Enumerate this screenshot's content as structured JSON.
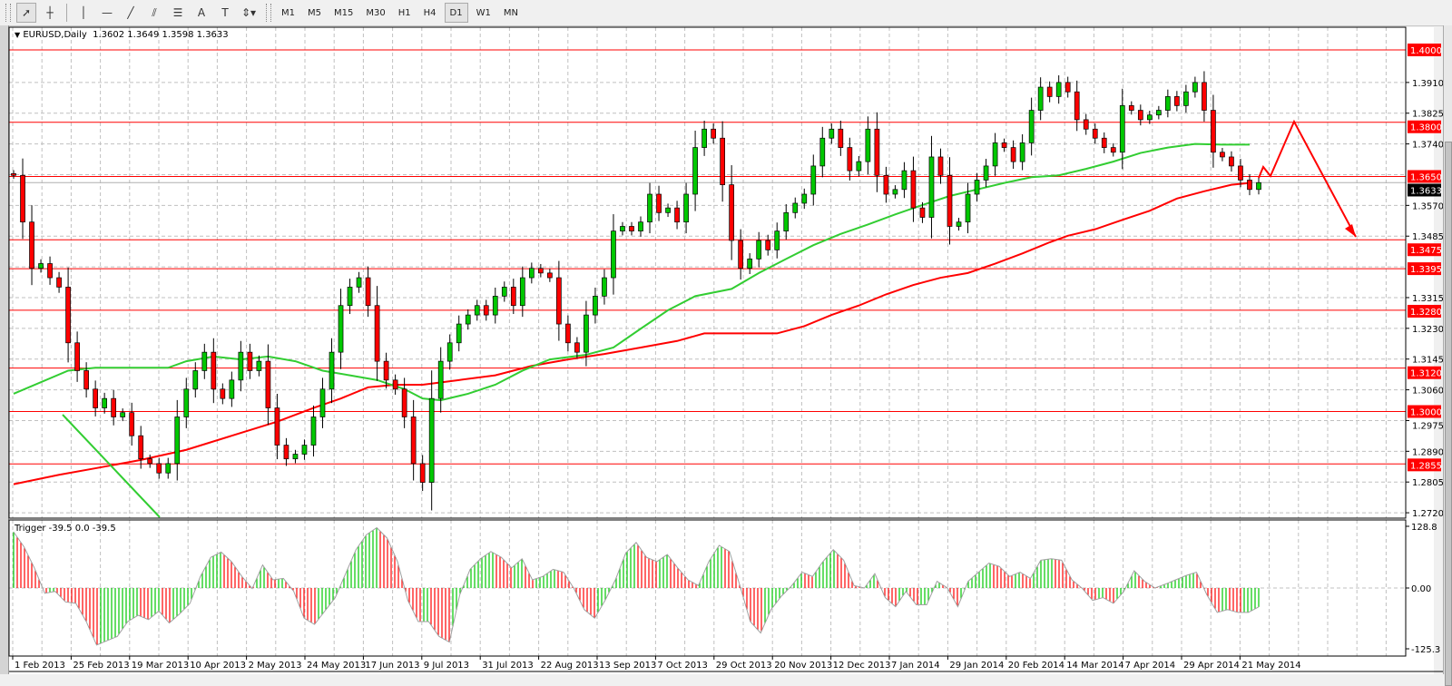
{
  "toolbar": {
    "tools": [
      {
        "name": "cursor-icon",
        "glyph": "➚"
      },
      {
        "name": "crosshair-icon",
        "glyph": "┼"
      },
      {
        "name": "vertical-line-icon",
        "glyph": "│"
      },
      {
        "name": "horizontal-line-icon",
        "glyph": "—"
      },
      {
        "name": "trendline-icon",
        "glyph": "╱"
      },
      {
        "name": "equidistant-channel-icon",
        "glyph": "⫽"
      },
      {
        "name": "fibonacci-icon",
        "glyph": "☰"
      },
      {
        "name": "text-icon",
        "glyph": "A"
      },
      {
        "name": "text-label-icon",
        "glyph": "T"
      },
      {
        "name": "arrows-dropdown-icon",
        "glyph": "⇕▾"
      }
    ],
    "timeframes": [
      "M1",
      "M5",
      "M15",
      "M30",
      "H1",
      "H4",
      "D1",
      "W1",
      "MN"
    ],
    "active_timeframe": "D1"
  },
  "chart": {
    "symbol_label": "EURUSD,Daily",
    "ohlc_label": "1.3602 1.3649 1.3598 1.3633"
  },
  "colors": {
    "bull": "#00c800",
    "bear": "#ff0000",
    "level": "#ff0000",
    "ma_fast": "#32cd32",
    "ma_slow": "#ff0000",
    "grid": "#c0c0c0"
  },
  "chart_data": {
    "type": "candlestick",
    "symbol": "EURUSD",
    "ylim": [
      1.272,
      1.4
    ],
    "current_price": "1.3633",
    "closes": [
      1.3653,
      1.3524,
      1.3396,
      1.3409,
      1.337,
      1.3344,
      1.319,
      1.3113,
      1.3062,
      1.301,
      1.3036,
      1.2985,
      1.2997,
      1.2933,
      1.2869,
      1.2856,
      1.283,
      1.2856,
      1.2985,
      1.3062,
      1.3113,
      1.3164,
      1.3062,
      1.3036,
      1.3087,
      1.3164,
      1.3113,
      1.3139,
      1.301,
      1.2907,
      1.2869,
      1.2882,
      1.2907,
      1.2985,
      1.3062,
      1.3164,
      1.3293,
      1.3344,
      1.337,
      1.3293,
      1.3139,
      1.3087,
      1.3062,
      1.2985,
      1.2856,
      1.2804,
      1.3036,
      1.3139,
      1.319,
      1.3242,
      1.3267,
      1.3293,
      1.3267,
      1.3319,
      1.3344,
      1.3293,
      1.337,
      1.3396,
      1.3383,
      1.337,
      1.3242,
      1.319,
      1.3164,
      1.3267,
      1.3319,
      1.337,
      1.3499,
      1.3512,
      1.3499,
      1.3524,
      1.3601,
      1.355,
      1.3563,
      1.3524,
      1.3601,
      1.373,
      1.3781,
      1.3756,
      1.3627,
      1.3473,
      1.3396,
      1.3422,
      1.3473,
      1.3447,
      1.3499,
      1.355,
      1.3576,
      1.3601,
      1.3679,
      1.3756,
      1.3781,
      1.373,
      1.3666,
      1.3691,
      1.3781,
      1.3653,
      1.3601,
      1.3614,
      1.3666,
      1.3563,
      1.3537,
      1.3704,
      1.3653,
      1.3512,
      1.3524,
      1.3601,
      1.364,
      1.3679,
      1.3743,
      1.373,
      1.3691,
      1.3743,
      1.3833,
      1.3897,
      1.3871,
      1.391,
      1.3884,
      1.3807,
      1.3781,
      1.3756,
      1.373,
      1.3717,
      1.3846,
      1.3833,
      1.3807,
      1.382,
      1.3833,
      1.3871,
      1.3846,
      1.3884,
      1.391,
      1.3833,
      1.3717,
      1.3704,
      1.3679,
      1.364,
      1.3614,
      1.3633
    ],
    "ma_fast": [
      [
        0,
        1.3049
      ],
      [
        6,
        1.3113
      ],
      [
        9,
        1.3121
      ],
      [
        17,
        1.3121
      ],
      [
        19,
        1.3139
      ],
      [
        22,
        1.3152
      ],
      [
        25,
        1.3144
      ],
      [
        28,
        1.3152
      ],
      [
        31,
        1.3139
      ],
      [
        34,
        1.3113
      ],
      [
        37,
        1.31
      ],
      [
        40,
        1.3087
      ],
      [
        43,
        1.3062
      ],
      [
        45,
        1.3036
      ],
      [
        47,
        1.3031
      ],
      [
        50,
        1.3049
      ],
      [
        53,
        1.3074
      ],
      [
        56,
        1.3113
      ],
      [
        59,
        1.3144
      ],
      [
        63,
        1.3157
      ],
      [
        66,
        1.3177
      ],
      [
        69,
        1.3229
      ],
      [
        72,
        1.328
      ],
      [
        75,
        1.3319
      ],
      [
        79,
        1.3339
      ],
      [
        82,
        1.3383
      ],
      [
        85,
        1.3422
      ],
      [
        88,
        1.346
      ],
      [
        91,
        1.3491
      ],
      [
        94,
        1.3517
      ],
      [
        97,
        1.3545
      ],
      [
        100,
        1.3571
      ],
      [
        103,
        1.3596
      ],
      [
        106,
        1.3614
      ],
      [
        109,
        1.3632
      ],
      [
        112,
        1.3648
      ],
      [
        115,
        1.3653
      ],
      [
        118,
        1.3671
      ],
      [
        121,
        1.3691
      ],
      [
        124,
        1.3715
      ],
      [
        127,
        1.373
      ],
      [
        130,
        1.374
      ],
      [
        133,
        1.3738
      ],
      [
        136,
        1.3738
      ]
    ],
    "ma_slow": [
      [
        0,
        1.2799
      ],
      [
        5,
        1.2825
      ],
      [
        9,
        1.2843
      ],
      [
        14,
        1.2866
      ],
      [
        19,
        1.2894
      ],
      [
        24,
        1.2933
      ],
      [
        29,
        1.2972
      ],
      [
        33,
        1.301
      ],
      [
        36,
        1.3036
      ],
      [
        39,
        1.3067
      ],
      [
        42,
        1.3074
      ],
      [
        45,
        1.3074
      ],
      [
        49,
        1.3087
      ],
      [
        53,
        1.31
      ],
      [
        57,
        1.3126
      ],
      [
        61,
        1.3144
      ],
      [
        65,
        1.3159
      ],
      [
        69,
        1.3177
      ],
      [
        73,
        1.3195
      ],
      [
        76,
        1.3216
      ],
      [
        80,
        1.3216
      ],
      [
        84,
        1.3216
      ],
      [
        87,
        1.3236
      ],
      [
        90,
        1.3267
      ],
      [
        93,
        1.3293
      ],
      [
        96,
        1.3324
      ],
      [
        99,
        1.335
      ],
      [
        102,
        1.337
      ],
      [
        105,
        1.3383
      ],
      [
        108,
        1.3409
      ],
      [
        111,
        1.3437
      ],
      [
        114,
        1.3468
      ],
      [
        116,
        1.3486
      ],
      [
        119,
        1.3504
      ],
      [
        122,
        1.353
      ],
      [
        125,
        1.3555
      ],
      [
        128,
        1.3589
      ],
      [
        131,
        1.3609
      ],
      [
        134,
        1.3627
      ],
      [
        136,
        1.3632
      ]
    ],
    "levels": [
      "1.4000",
      "1.3800",
      "1.3650",
      "1.3475",
      "1.3395",
      "1.3280",
      "1.3120",
      "1.3000",
      "1.2855"
    ],
    "y_ticks": [
      "1.3910",
      "1.3825",
      "1.3740",
      "1.3570",
      "1.3485",
      "1.3315",
      "1.3230",
      "1.3145",
      "1.3060",
      "1.2975",
      "1.2890",
      "1.2805",
      "1.2720"
    ],
    "x_ticks": [
      "1 Feb 2013",
      "25 Feb 2013",
      "19 Mar 2013",
      "10 Apr 2013",
      "2 May 2013",
      "24 May 2013",
      "17 Jun 2013",
      "9 Jul 2013",
      "31 Jul 2013",
      "22 Aug 2013",
      "13 Sep 2013",
      "7 Oct 2013",
      "29 Oct 2013",
      "20 Nov 2013",
      "12 Dec 2013",
      "7 Jan 2014",
      "29 Jan 2014",
      "20 Feb 2014",
      "14 Mar 2014",
      "7 Apr 2014",
      "29 Apr 2014",
      "21 May 2014"
    ],
    "grid": true,
    "indicator": {
      "header": "Trigger -39.5 0.0 -39.5",
      "ylim": [
        -125.3,
        128.8
      ],
      "ticks": [
        "128.8",
        "0.00",
        "-125.3"
      ],
      "values": [
        117,
        86,
        42,
        -11,
        -7,
        -29,
        -32,
        -70,
        -119,
        -110,
        -101,
        -70,
        -57,
        -66,
        -48,
        -73,
        -54,
        -32,
        24,
        64,
        75,
        55,
        24,
        -1,
        48,
        17,
        20,
        -7,
        -63,
        -76,
        -48,
        -20,
        30,
        80,
        111,
        126,
        104,
        55,
        -26,
        -70,
        -70,
        -101,
        -113,
        -14,
        39,
        61,
        76,
        64,
        42,
        61,
        17,
        24,
        39,
        33,
        -1,
        -45,
        -63,
        -26,
        17,
        73,
        95,
        64,
        55,
        70,
        42,
        17,
        5,
        55,
        89,
        76,
        5,
        -70,
        -94,
        -45,
        -17,
        5,
        33,
        24,
        55,
        80,
        58,
        5,
        0,
        30,
        -20,
        -39,
        -7,
        -35,
        -35,
        14,
        0,
        -39,
        14,
        33,
        52,
        45,
        24,
        33,
        20,
        58,
        61,
        58,
        17,
        -1,
        -26,
        -20,
        -32,
        -7,
        36,
        14,
        0,
        8,
        17,
        26,
        33,
        -14,
        -51,
        -45,
        -51,
        -51,
        -39.5
      ]
    }
  }
}
